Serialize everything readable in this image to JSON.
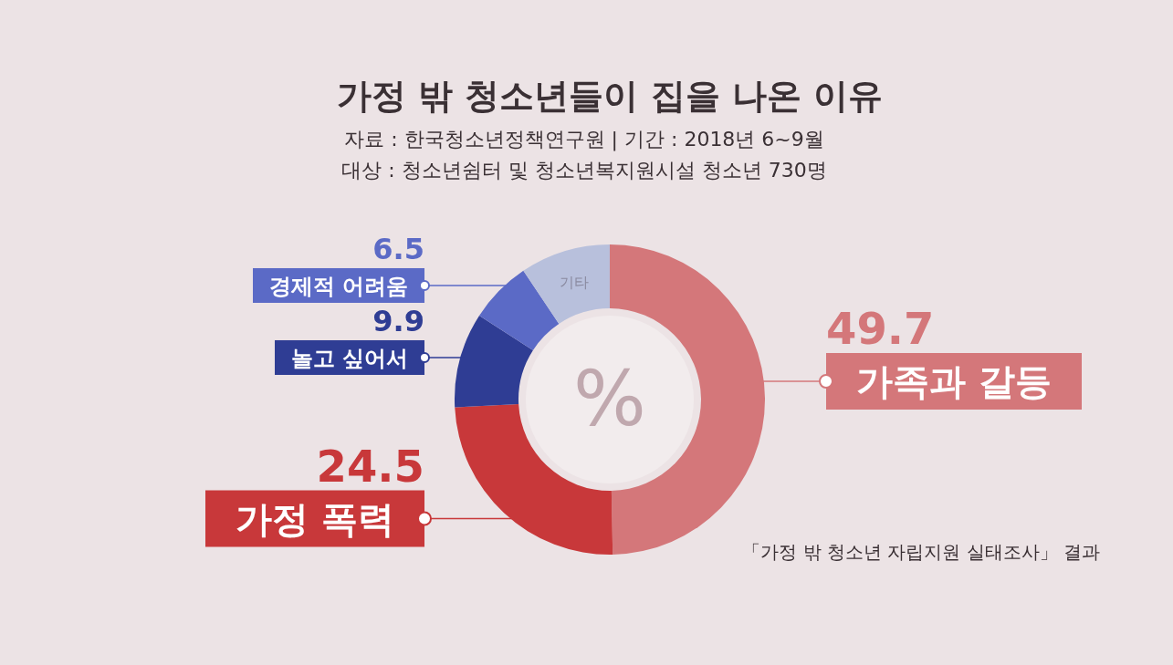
{
  "chart_data": {
    "type": "donut",
    "title": "가정 밖 청소년들이 집을 나온 이유",
    "subtitle": "자료 : 한국청소년정책연구원 | 기간 : 2018년 6~9월\n대상 : 청소년쉼터 및 청소년복지원시설 청소년 730명",
    "categories": [
      "가족과 갈등",
      "가정 폭력",
      "놀고 싶어서",
      "경제적 어려움",
      "기타"
    ],
    "values": [
      49.7,
      24.5,
      9.9,
      6.5,
      9.4
    ],
    "value_labels": [
      "49.7",
      "24.5",
      "9.9",
      "6.5",
      null
    ],
    "colors": [
      "#d4777a",
      "#c8383a",
      "#2f3d94",
      "#5b6ac6",
      "#b8c0dc"
    ],
    "annotations": [
      "%",
      "「가정 밖 청소년 자립지원 실태조사」 결과"
    ]
  }
}
